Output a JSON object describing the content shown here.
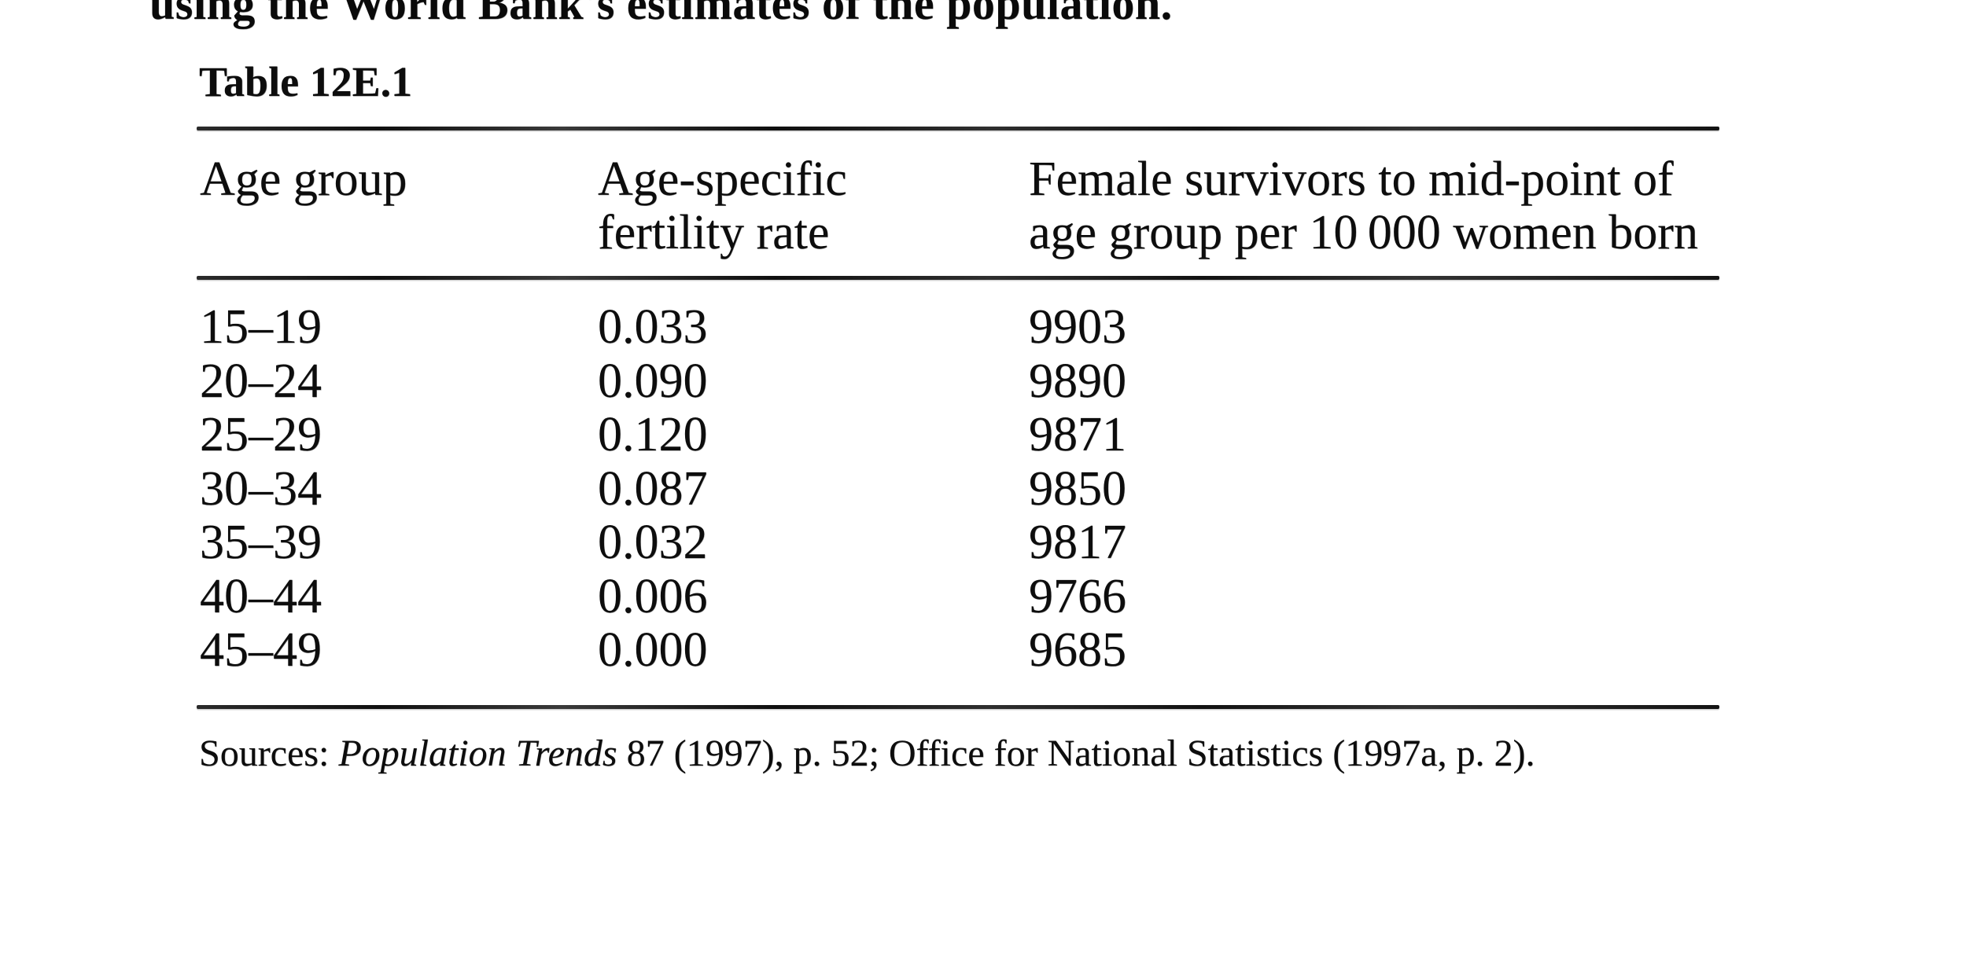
{
  "colors": {
    "paper": "#ffffff",
    "ink": "#0d0d0d"
  },
  "body_text": {
    "cropped_top_line": "using the World Bank's estimates of the population."
  },
  "table": {
    "title": "Table 12E.1",
    "columns": [
      {
        "line1": "Age group",
        "line2": ""
      },
      {
        "line1": "Age-specific",
        "line2": "fertility rate"
      },
      {
        "line1": "Female survivors to mid-point of",
        "line2": "age group per 10 000 women born"
      }
    ],
    "rows": [
      {
        "age_group": "15–19",
        "fertility_rate": "0.033",
        "survivors": "9903"
      },
      {
        "age_group": "20–24",
        "fertility_rate": "0.090",
        "survivors": "9890"
      },
      {
        "age_group": "25–29",
        "fertility_rate": "0.120",
        "survivors": "9871"
      },
      {
        "age_group": "30–34",
        "fertility_rate": "0.087",
        "survivors": "9850"
      },
      {
        "age_group": "35–39",
        "fertility_rate": "0.032",
        "survivors": "9817"
      },
      {
        "age_group": "40–44",
        "fertility_rate": "0.006",
        "survivors": "9766"
      },
      {
        "age_group": "45–49",
        "fertility_rate": "0.000",
        "survivors": "9685"
      }
    ]
  },
  "sources": {
    "prefix": "Sources: ",
    "italic": "Population Trends",
    "rest": " 87 (1997), p. 52; Office for National Statistics (1997a, p. 2)."
  },
  "chart_data": {
    "type": "table",
    "title": "Table 12E.1",
    "categories": [
      "15-19",
      "20-24",
      "25-29",
      "30-34",
      "35-39",
      "40-44",
      "45-49"
    ],
    "series": [
      {
        "name": "Age-specific fertility rate",
        "values": [
          0.033,
          0.09,
          0.12,
          0.087,
          0.032,
          0.006,
          0.0
        ]
      },
      {
        "name": "Female survivors to mid-point of age group per 10 000 women born",
        "values": [
          9903,
          9890,
          9871,
          9850,
          9817,
          9766,
          9685
        ]
      }
    ]
  }
}
